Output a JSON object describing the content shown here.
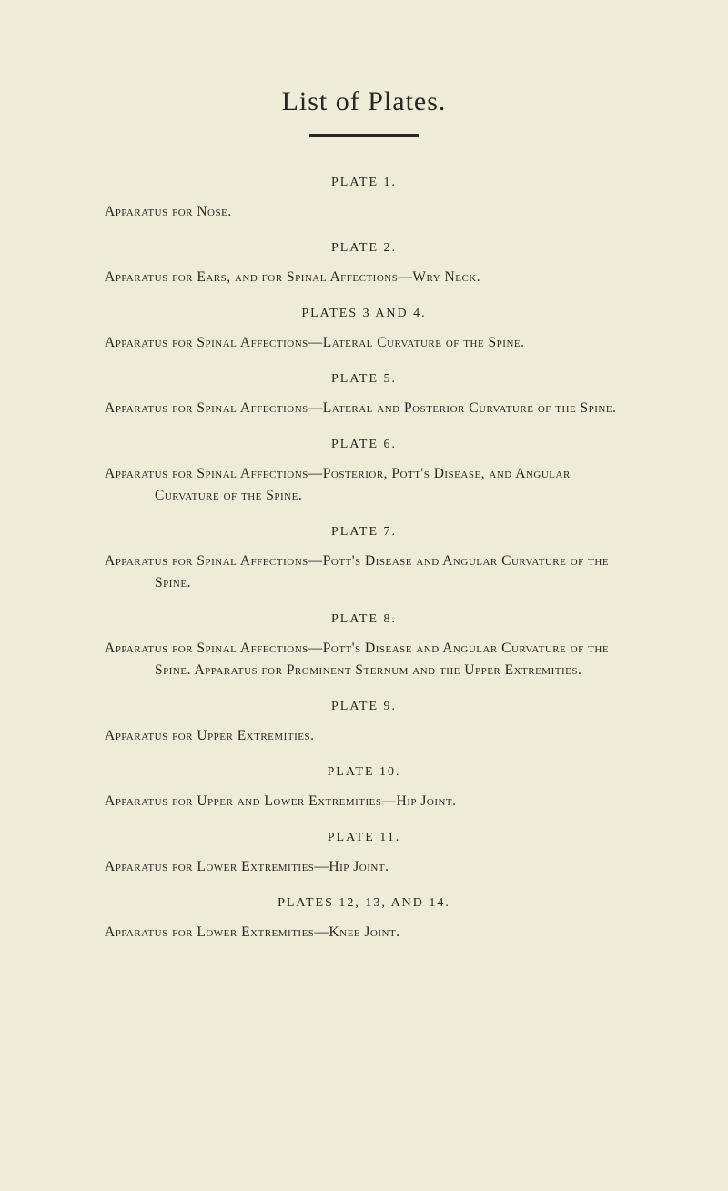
{
  "page": {
    "title": "List of Plates.",
    "background_color": "#f0ead8",
    "text_color": "#2a2520"
  },
  "plates": [
    {
      "heading": "PLATE 1.",
      "description": "Apparatus for Nose."
    },
    {
      "heading": "PLATE 2.",
      "description": "Apparatus for Ears, and for Spinal Affections—Wry Neck."
    },
    {
      "heading": "PLATES 3 AND 4.",
      "description": "Apparatus for Spinal Affections—Lateral Curvature of the Spine."
    },
    {
      "heading": "PLATE 5.",
      "description": "Apparatus for Spinal Affections—Lateral and Posterior Curvature of the Spine."
    },
    {
      "heading": "PLATE 6.",
      "description": "Apparatus for Spinal Affections—Posterior, Pott's Disease, and Angular Curvature of the Spine."
    },
    {
      "heading": "PLATE 7.",
      "description": "Apparatus for Spinal Affections—Pott's Disease and Angular Curvature of the Spine."
    },
    {
      "heading": "PLATE 8.",
      "description": "Apparatus for Spinal Affections—Pott's Disease and Angular Curvature of the Spine.  Apparatus for Prominent Sternum and the Upper Extremities."
    },
    {
      "heading": "PLATE 9.",
      "description": "Apparatus for Upper Extremities."
    },
    {
      "heading": "PLATE 10.",
      "description": "Apparatus for Upper and Lower Extremities—Hip Joint."
    },
    {
      "heading": "PLATE 11.",
      "description": "Apparatus for Lower Extremities—Hip Joint."
    },
    {
      "heading": "PLATES 12, 13, AND 14.",
      "description": "Apparatus for Lower Extremities—Knee Joint."
    }
  ]
}
